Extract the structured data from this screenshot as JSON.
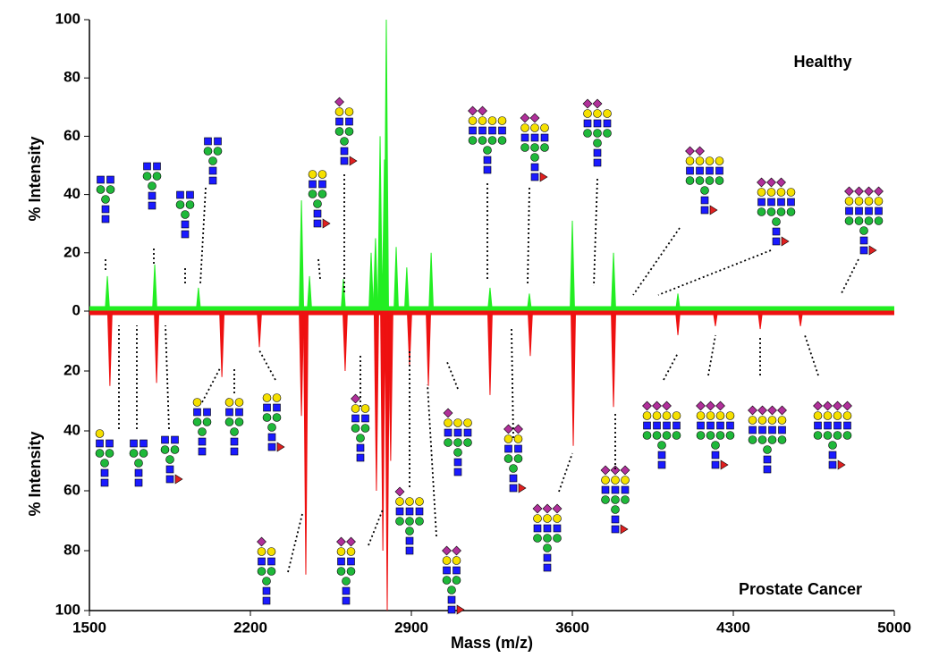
{
  "chart_data": {
    "type": "mirror-spectrum",
    "x_label": "Mass (m/z)",
    "y_label": "% Intensity",
    "y2_label": "% Intensity",
    "xlim": [
      1500,
      5000
    ],
    "xticks": [
      1500,
      2200,
      2900,
      3600,
      4300,
      5000
    ],
    "ylim": [
      0,
      100
    ],
    "yticks": [
      0,
      20,
      40,
      60,
      80,
      100
    ],
    "y2lim": [
      0,
      100
    ],
    "y2ticks": [
      20,
      40,
      60,
      80,
      100
    ],
    "series": [
      {
        "name": "Healthy",
        "color": "#22ee22",
        "x": [
          1578,
          1784,
          1974,
          2422,
          2457,
          2604,
          2725,
          2744,
          2764,
          2783,
          2791,
          2834,
          2880,
          2986,
          3242,
          3413,
          3600,
          3779,
          4059
        ],
        "values": [
          12,
          16,
          8,
          38,
          12,
          11,
          20,
          25,
          60,
          52,
          100,
          22,
          15,
          20,
          8,
          6,
          31,
          20,
          6
        ]
      },
      {
        "name": "Prostate Cancer",
        "color": "#ee1111",
        "axis": "y2",
        "x": [
          1589,
          1792,
          2076,
          2239,
          2422,
          2441,
          2612,
          2748,
          2776,
          2795,
          2810,
          2892,
          2974,
          3242,
          3417,
          3604,
          3779,
          4059,
          4222,
          4417,
          4592
        ],
        "values": [
          25,
          24,
          22,
          12,
          35,
          88,
          20,
          60,
          80,
          100,
          50,
          18,
          25,
          28,
          15,
          45,
          32,
          8,
          5,
          6,
          5
        ]
      }
    ]
  }
}
